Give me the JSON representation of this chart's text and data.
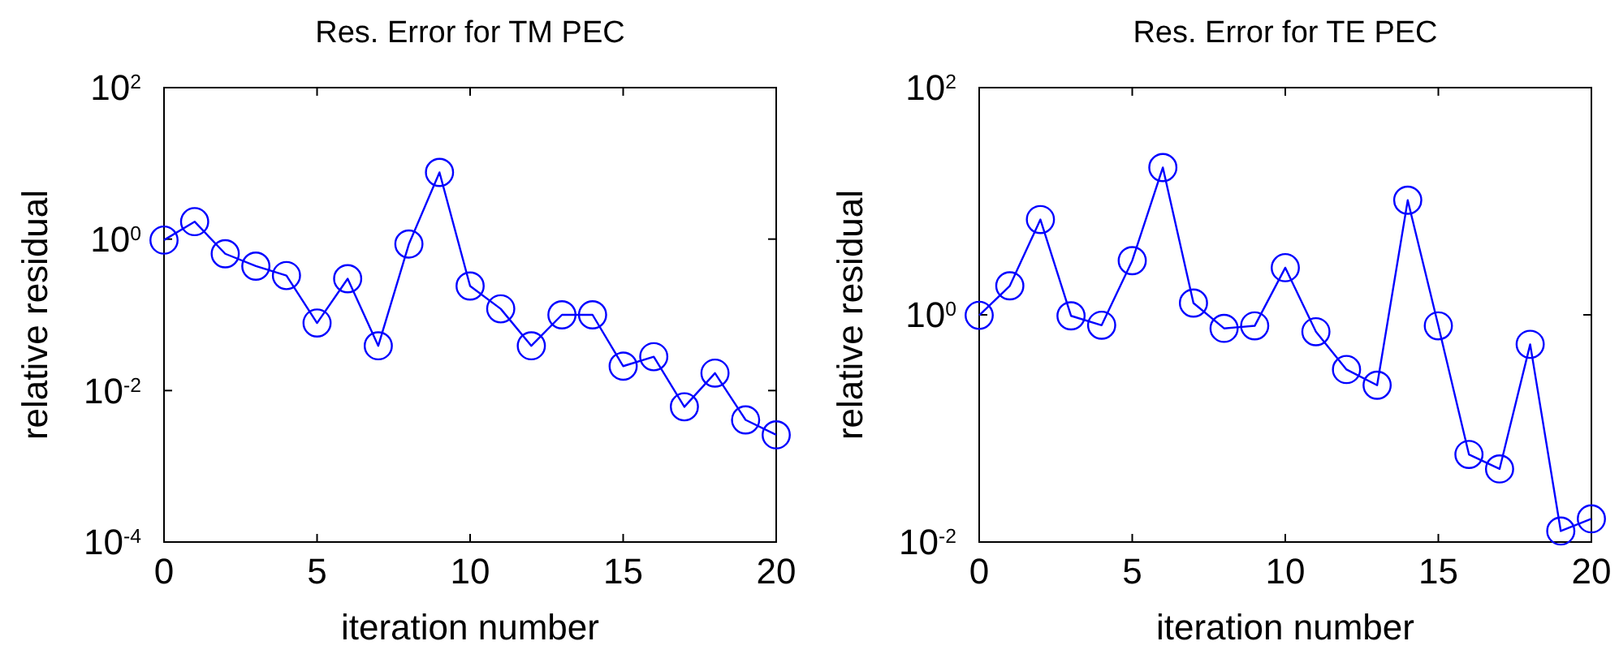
{
  "chart_data": [
    {
      "type": "line",
      "title": "Res. Error for TM PEC",
      "xlabel": "iteration number",
      "ylabel": "relative residual",
      "log": "y",
      "marker": "circle",
      "line_style": "solid",
      "x": [
        0,
        1,
        2,
        3,
        4,
        5,
        6,
        7,
        8,
        9,
        10,
        11,
        12,
        13,
        14,
        15,
        16,
        17,
        18,
        19,
        20
      ],
      "series": [
        {
          "color": "#0000ff",
          "values": [
            0.97,
            1.7,
            0.64,
            0.44,
            0.33,
            0.078,
            0.3,
            0.039,
            0.86,
            7.6,
            0.24,
            0.12,
            0.039,
            0.1,
            0.1,
            0.021,
            0.028,
            0.0061,
            0.017,
            0.0041,
            0.0026
          ]
        }
      ],
      "xlim": [
        0,
        20
      ],
      "xticks": [
        0,
        5,
        10,
        15,
        20
      ],
      "ylim": [
        0.0001,
        100
      ],
      "yticks": [
        {
          "value": 0.0001,
          "label": "10$^{-4}$"
        },
        {
          "value": 0.01,
          "label": "10$^{-2}$"
        },
        {
          "value": 1,
          "label": "10$^{0}$"
        },
        {
          "value": 100,
          "label": "10$^{2}$"
        }
      ]
    },
    {
      "type": "line",
      "title": "Res. Error for TE PEC",
      "xlabel": "iteration number",
      "ylabel": "relative residual",
      "log": "y",
      "marker": "circle",
      "line_style": "solid",
      "x": [
        0,
        1,
        2,
        3,
        4,
        5,
        6,
        7,
        8,
        9,
        10,
        11,
        12,
        13,
        14,
        15,
        16,
        17,
        18,
        19,
        20
      ],
      "series": [
        {
          "color": "#0000ff",
          "values": [
            0.99,
            1.8,
            6.9,
            0.98,
            0.81,
            3.0,
            19.8,
            1.27,
            0.76,
            0.8,
            2.6,
            0.71,
            0.33,
            0.24,
            10.2,
            0.8,
            0.059,
            0.044,
            0.55,
            0.0125,
            0.016
          ]
        }
      ],
      "xlim": [
        0,
        20
      ],
      "xticks": [
        0,
        5,
        10,
        15,
        20
      ],
      "ylim": [
        0.01,
        100
      ],
      "yticks": [
        {
          "value": 0.01,
          "label": "10$^{-2}$"
        },
        {
          "value": 1,
          "label": "10$^{0}$"
        },
        {
          "value": 100,
          "label": "10$^{2}$"
        }
      ]
    }
  ]
}
